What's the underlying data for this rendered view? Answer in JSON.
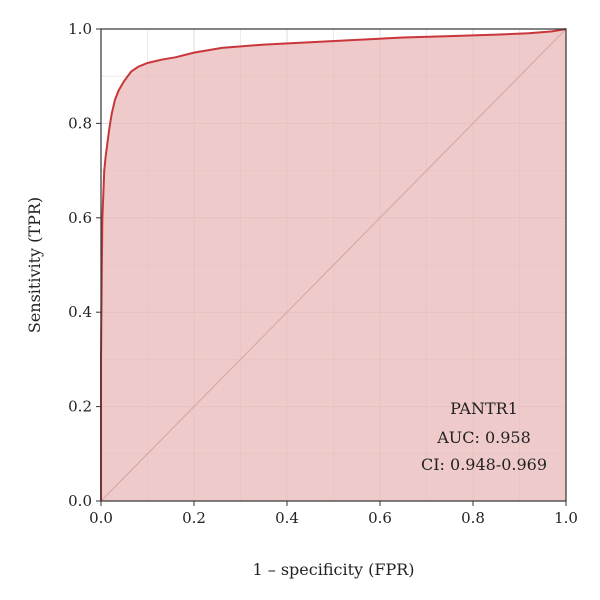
{
  "chart_data": {
    "type": "line",
    "xlabel": "1 – specificity (FPR)",
    "ylabel": "Sensitivity (TPR)",
    "xlim": [
      0,
      1
    ],
    "ylim": [
      0,
      1
    ],
    "x_ticks": [
      "0.0",
      "0.2",
      "0.4",
      "0.6",
      "0.8",
      "1.0"
    ],
    "y_ticks": [
      "0.0",
      "0.2",
      "0.4",
      "0.6",
      "0.8",
      "1.0"
    ],
    "grid": true,
    "reference_diagonal": true,
    "series": [
      {
        "x": [
          0.0,
          0.0,
          0.002,
          0.003,
          0.005,
          0.007,
          0.01,
          0.014,
          0.018,
          0.023,
          0.03,
          0.038,
          0.05,
          0.065,
          0.08,
          0.1,
          0.13,
          0.16,
          0.2,
          0.26,
          0.35,
          0.45,
          0.55,
          0.65,
          0.75,
          0.85,
          0.92,
          0.97,
          1.0
        ],
        "y": [
          0.0,
          0.3,
          0.52,
          0.6,
          0.65,
          0.7,
          0.73,
          0.76,
          0.79,
          0.82,
          0.85,
          0.87,
          0.89,
          0.91,
          0.92,
          0.928,
          0.935,
          0.94,
          0.95,
          0.96,
          0.967,
          0.972,
          0.977,
          0.982,
          0.985,
          0.988,
          0.991,
          0.995,
          1.0
        ],
        "color": "#c8363a",
        "fill": "#e9b8b8"
      }
    ],
    "annotation": {
      "name": "PANTR1",
      "auc": "AUC: 0.958",
      "ci": "CI: 0.948-0.969"
    }
  }
}
